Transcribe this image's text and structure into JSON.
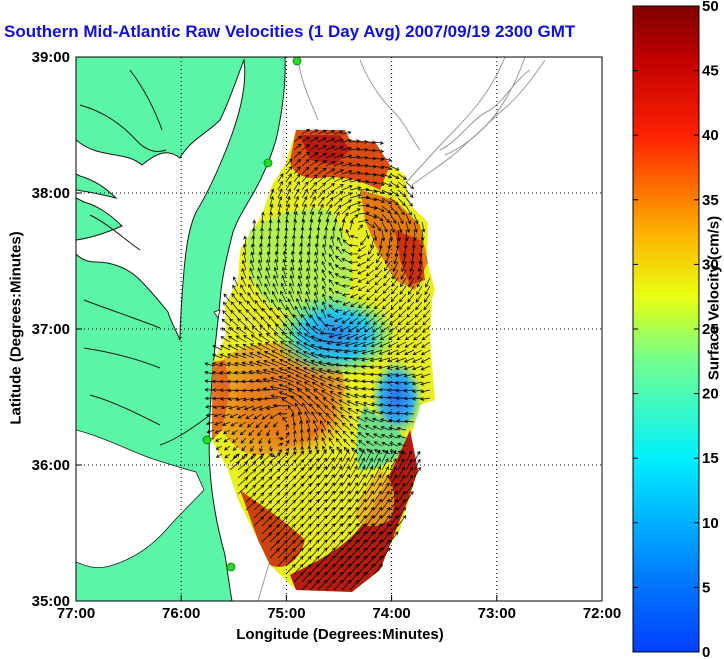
{
  "title": "Southern Mid-Atlantic Raw Velocities (1 Day Avg) 2007/09/19 2300 GMT",
  "xlabel": "Longitude (Degrees:Minutes)",
  "ylabel": "Latitude (Degrees:Minutes)",
  "colors": {
    "land": "#5af5a5",
    "coast": "#1a1a1a",
    "bathymetry": "#9a9a9a",
    "water": "#ffffff",
    "station": "#22dd22"
  },
  "chart_data": {
    "type": "map-vector-field",
    "xlim": [
      -77,
      -72
    ],
    "ylim": [
      35,
      39
    ],
    "x_ticks": [
      "77:00",
      "76:00",
      "75:00",
      "74:00",
      "73:00",
      "72:00"
    ],
    "y_ticks": [
      "39:00",
      "38:00",
      "37:00",
      "36:00",
      "35:00"
    ],
    "grid": "dotted",
    "colorbar": {
      "label": "Surface Velocity (cm/s)",
      "min": 0,
      "max": 50,
      "ticks": [
        "50",
        "45",
        "40",
        "35",
        "30",
        "25",
        "20",
        "15",
        "10",
        "5",
        "0"
      ],
      "colormap": "jet"
    }
  }
}
